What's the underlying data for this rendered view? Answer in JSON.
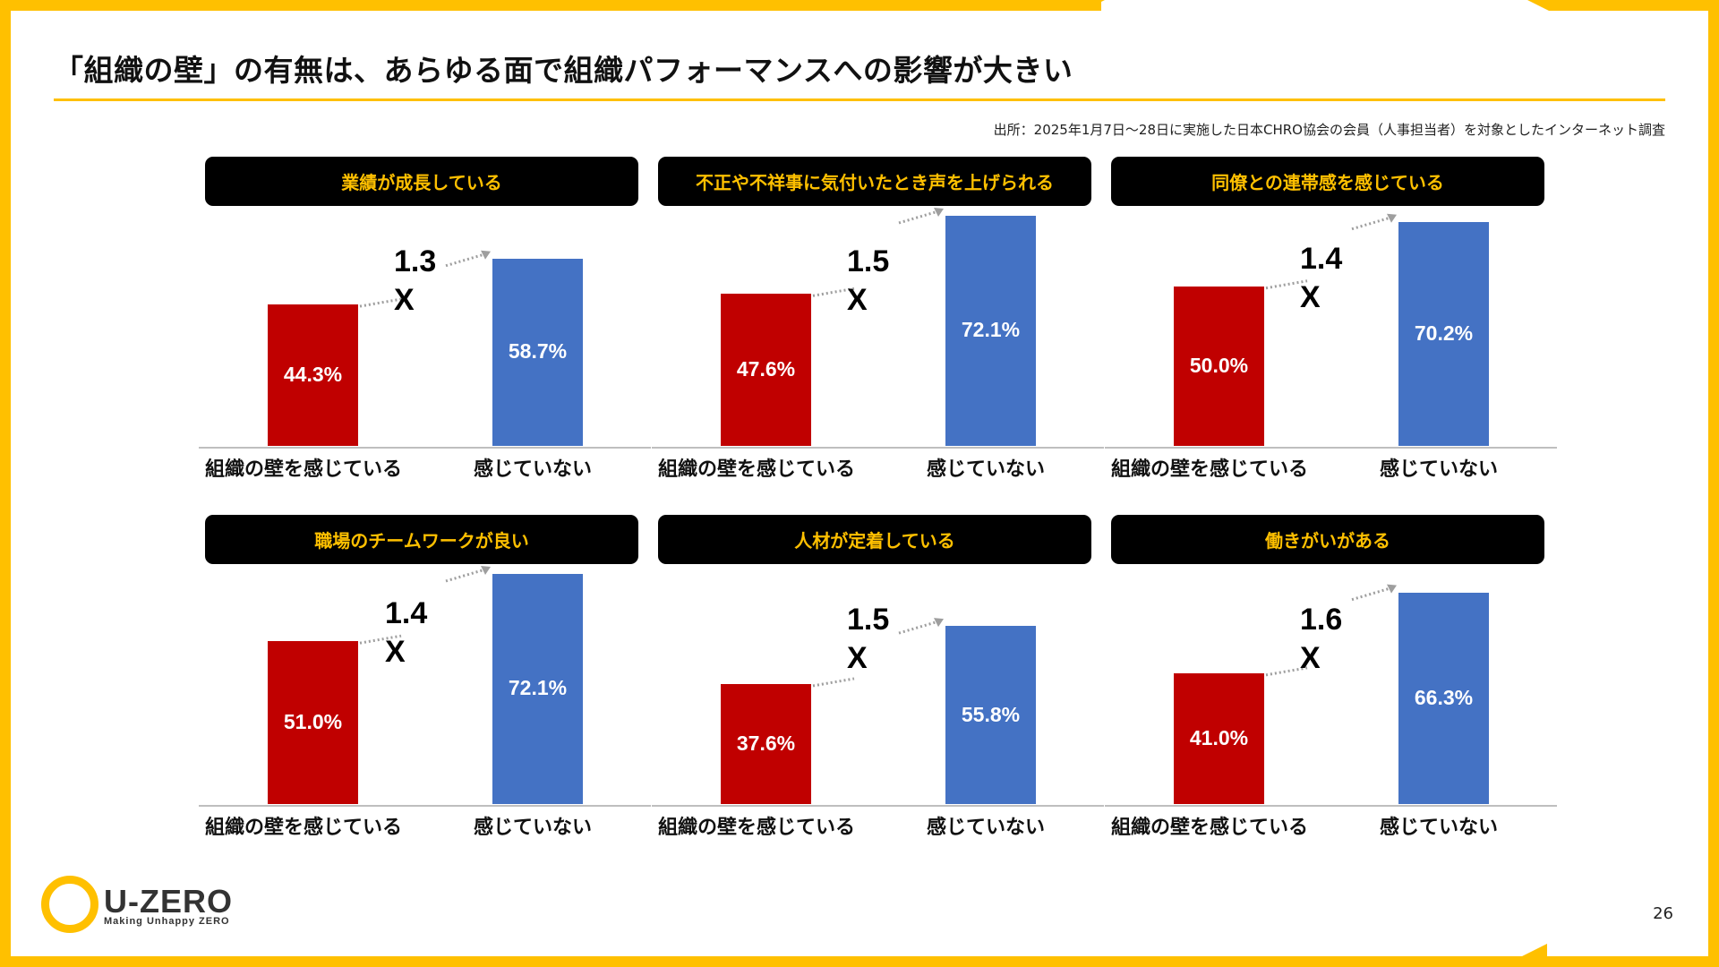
{
  "title": "「組織の壁」の有無は、あらゆる面で組織パフォーマンスへの影響が大きい",
  "source": "出所：2025年1月7日～28日に実施した日本CHRO協会の会員（人事担当者）を対象としたインターネット調査",
  "page_number": "26",
  "logo": {
    "name": "U-ZERO",
    "tagline": "Making Unhappy ZERO"
  },
  "colors": {
    "accent": "#FFC000",
    "red": "#C00000",
    "blue": "#4472C4",
    "header_bg": "#000000"
  },
  "chart_data": [
    {
      "type": "bar",
      "title": "業績が成長している",
      "categories": [
        "組織の壁を感じている",
        "感じていない"
      ],
      "values": [
        44.3,
        58.7
      ],
      "labels": [
        "44.3%",
        "58.7%"
      ],
      "multiplier": "1.3",
      "multiplier_suffix": "X"
    },
    {
      "type": "bar",
      "title": "不正や不祥事に気付いたとき声を上げられる",
      "categories": [
        "組織の壁を感じている",
        "感じていない"
      ],
      "values": [
        47.6,
        72.1
      ],
      "labels": [
        "47.6%",
        "72.1%"
      ],
      "multiplier": "1.5",
      "multiplier_suffix": "X"
    },
    {
      "type": "bar",
      "title": "同僚との連帯感を感じている",
      "categories": [
        "組織の壁を感じている",
        "感じていない"
      ],
      "values": [
        50.0,
        70.2
      ],
      "labels": [
        "50.0%",
        "70.2%"
      ],
      "multiplier": "1.4",
      "multiplier_suffix": "X"
    },
    {
      "type": "bar",
      "title": "職場のチームワークが良い",
      "categories": [
        "組織の壁を感じている",
        "感じていない"
      ],
      "values": [
        51.0,
        72.1
      ],
      "labels": [
        "51.0%",
        "72.1%"
      ],
      "multiplier": "1.4",
      "multiplier_suffix": "X"
    },
    {
      "type": "bar",
      "title": "人材が定着している",
      "categories": [
        "組織の壁を感じている",
        "感じていない"
      ],
      "values": [
        37.6,
        55.8
      ],
      "labels": [
        "37.6%",
        "55.8%"
      ],
      "multiplier": "1.5",
      "multiplier_suffix": "X"
    },
    {
      "type": "bar",
      "title": "働きがいがある",
      "categories": [
        "組織の壁を感じている",
        "感じていない"
      ],
      "values": [
        41.0,
        66.3
      ],
      "labels": [
        "41.0%",
        "66.3%"
      ],
      "multiplier": "1.6",
      "multiplier_suffix": "X"
    }
  ]
}
